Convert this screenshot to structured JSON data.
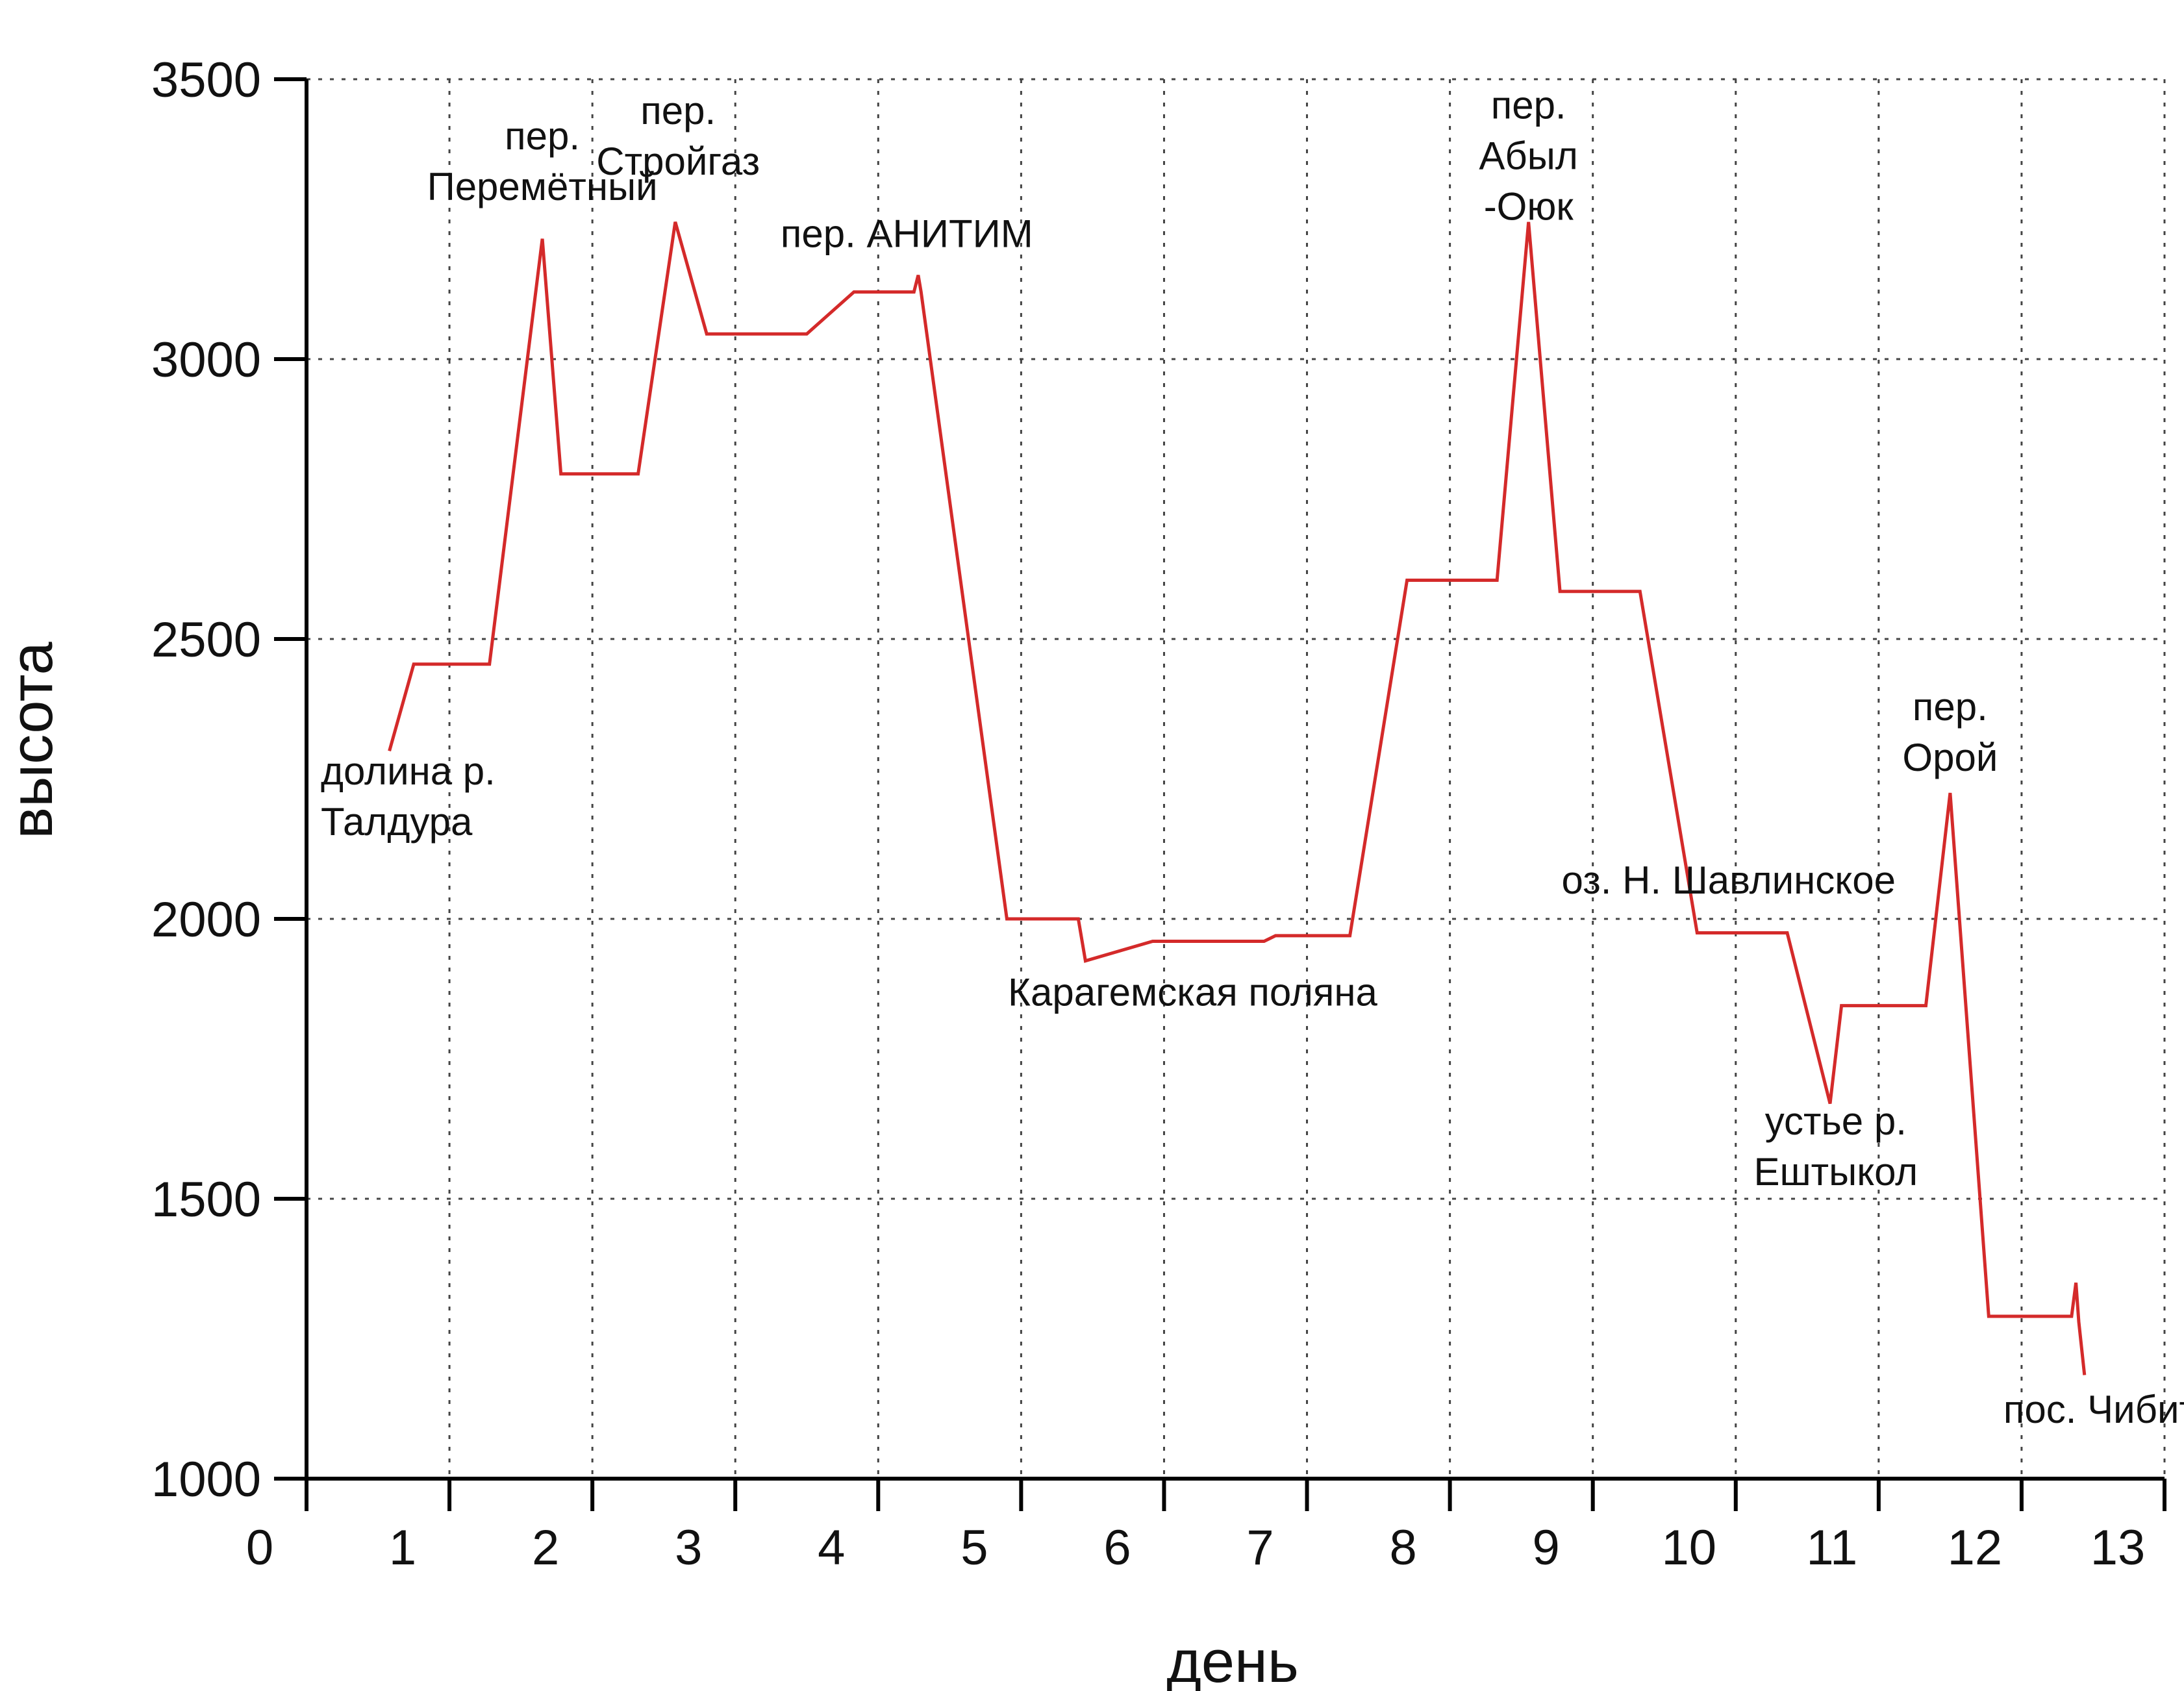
{
  "chart_data": {
    "type": "line",
    "title": "",
    "xlabel": "день",
    "ylabel": "высота",
    "xlim": [
      0,
      13
    ],
    "ylim": [
      1000,
      3500
    ],
    "xticks": [
      0,
      1,
      2,
      3,
      4,
      5,
      6,
      7,
      8,
      9,
      10,
      11,
      12,
      13
    ],
    "yticks": [
      1000,
      1500,
      2000,
      2500,
      3000,
      3500
    ],
    "grid": true,
    "line_color": "#d42a2a",
    "series": [
      {
        "name": "высота",
        "points": [
          [
            0.58,
            2300
          ],
          [
            0.75,
            2455
          ],
          [
            1.28,
            2455
          ],
          [
            1.65,
            3215
          ],
          [
            1.78,
            2795
          ],
          [
            2.32,
            2795
          ],
          [
            2.58,
            3245
          ],
          [
            2.8,
            3045
          ],
          [
            3.5,
            3045
          ],
          [
            3.83,
            3120
          ],
          [
            4.25,
            3120
          ],
          [
            4.28,
            3150
          ],
          [
            4.3,
            3120
          ],
          [
            4.9,
            2000
          ],
          [
            5.4,
            2000
          ],
          [
            5.45,
            1925
          ],
          [
            5.92,
            1960
          ],
          [
            6.7,
            1960
          ],
          [
            6.78,
            1970
          ],
          [
            7.3,
            1970
          ],
          [
            7.7,
            2605
          ],
          [
            8.33,
            2605
          ],
          [
            8.55,
            3245
          ],
          [
            8.77,
            2585
          ],
          [
            9.33,
            2585
          ],
          [
            9.73,
            1975
          ],
          [
            10.36,
            1975
          ],
          [
            10.66,
            1670
          ],
          [
            10.74,
            1845
          ],
          [
            11.33,
            1845
          ],
          [
            11.5,
            2225
          ],
          [
            11.77,
            1290
          ],
          [
            12.35,
            1290
          ],
          [
            12.38,
            1350
          ],
          [
            12.4,
            1280
          ],
          [
            12.44,
            1185
          ]
        ]
      }
    ],
    "annotations": [
      {
        "lines": [
          "долина р.",
          "Талдура"
        ],
        "x": 0.1,
        "y": 2240,
        "anchor": "start"
      },
      {
        "lines": [
          "пер.",
          "Перемётный"
        ],
        "x": 1.65,
        "y": 3375,
        "anchor": "middle"
      },
      {
        "lines": [
          "пер.",
          "Стройгаз"
        ],
        "x": 2.6,
        "y": 3420,
        "anchor": "middle"
      },
      {
        "lines": [
          "пер. АНИТИМ"
        ],
        "x": 4.2,
        "y": 3200,
        "anchor": "middle"
      },
      {
        "lines": [
          "пер.",
          "Абыл",
          "-Оюк"
        ],
        "x": 8.55,
        "y": 3430,
        "anchor": "middle"
      },
      {
        "lines": [
          "пер.",
          "Орой"
        ],
        "x": 11.5,
        "y": 2355,
        "anchor": "middle"
      },
      {
        "lines": [
          "оз. Н. Шавлинское"
        ],
        "x": 9.95,
        "y": 2045,
        "anchor": "middle"
      },
      {
        "lines": [
          "Карагемская поляна"
        ],
        "x": 6.2,
        "y": 1845,
        "anchor": "middle"
      },
      {
        "lines": [
          "устье р.",
          "Ештыкол"
        ],
        "x": 10.7,
        "y": 1615,
        "anchor": "middle"
      },
      {
        "lines": [
          "пос. Чибит"
        ],
        "x": 12.55,
        "y": 1100,
        "anchor": "middle"
      }
    ]
  }
}
